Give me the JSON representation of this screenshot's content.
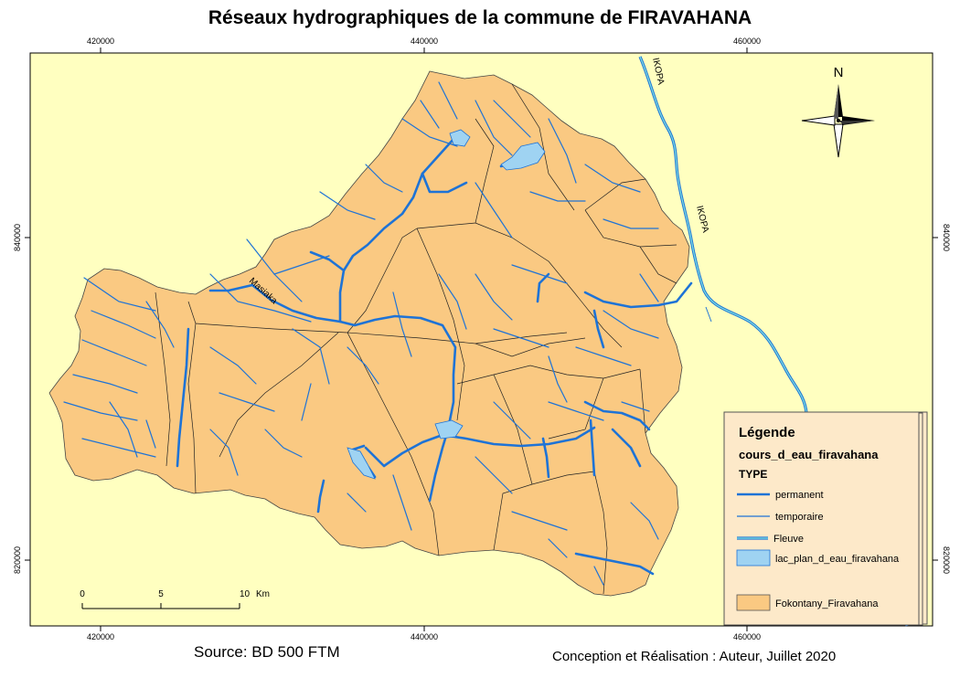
{
  "title": "Réseaux hydrographiques de la commune de FIRAVAHANA",
  "grid": {
    "x_ticks": [
      "420000",
      "440000",
      "460000"
    ],
    "y_ticks": [
      "840000",
      "820000"
    ]
  },
  "north_arrow": {
    "label": "N",
    "icon": "compass-rose-icon"
  },
  "rivers": {
    "fleuve_label": "IKOPA",
    "main_label": "Masiaka"
  },
  "scale_bar": {
    "ticks": [
      "0",
      "5",
      "10"
    ],
    "unit": "Km"
  },
  "legend": {
    "title": "Légende",
    "layer": "cours_d_eau_firavahana",
    "type_heading": "TYPE",
    "items": [
      {
        "label": "permanent",
        "color": "#1e73d6"
      },
      {
        "label": "temporaire",
        "color": "#1e73d6"
      },
      {
        "label": "Fleuve",
        "color": "#1e73d6"
      },
      {
        "label": "lac_plan_d_eau_firavahana",
        "color": "#9fd3f2"
      },
      {
        "label": "Fokontany_Firavahana",
        "color": "#fac982"
      }
    ]
  },
  "colors": {
    "background": "#ffffc0",
    "commune": "#fac982",
    "water": "#1e73d6",
    "lake": "#9fd3f2",
    "fleuve_fill": "#7fe0e0"
  },
  "source": "Source: BD 500 FTM",
  "credit": "Conception et Réalisation : Auteur, Juillet 2020"
}
